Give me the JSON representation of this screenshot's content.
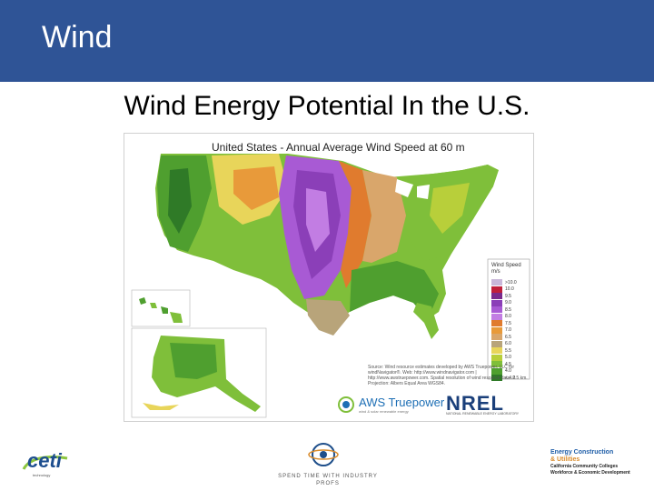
{
  "header": {
    "title": "Wind",
    "color": "#2f5496"
  },
  "slide": {
    "heading": "Wind Energy Potential In the U.S."
  },
  "map": {
    "title": "United States - Annual Average Wind Speed at 60 m",
    "legend": {
      "title": "Wind Speed m/s",
      "levels": [
        {
          "label": ">10.0",
          "color": "#c9b7d9"
        },
        {
          "label": "10.0",
          "color": "#c01f3a"
        },
        {
          "label": "9.5",
          "color": "#7a2a8c"
        },
        {
          "label": "9.0",
          "color": "#8b3fb8"
        },
        {
          "label": "8.5",
          "color": "#a85ad4"
        },
        {
          "label": "8.0",
          "color": "#c27de3"
        },
        {
          "label": "7.5",
          "color": "#e07b2e"
        },
        {
          "label": "7.0",
          "color": "#e89a3a"
        },
        {
          "label": "6.5",
          "color": "#d9a66b"
        },
        {
          "label": "6.0",
          "color": "#b8a47a"
        },
        {
          "label": "5.5",
          "color": "#e8d55a"
        },
        {
          "label": "5.0",
          "color": "#b8cf3a"
        },
        {
          "label": "4.5",
          "color": "#7fbf3a"
        },
        {
          "label": "4.0",
          "color": "#4f9f2f"
        },
        {
          "label": "< 4.0",
          "color": "#2f7a27"
        }
      ]
    },
    "source_note": "Source: Wind resource estimates developed by AWS Truepower, LLC for windNavigator®. Web: http://www.windnavigator.com | http://www.awstruepower.com. Spatial resolution of wind resource data: 2.5 km. Projection: Albers Equal Area WGS84.",
    "logos": {
      "aws": "AWS Truepower",
      "aws_tagline": "wind & solar renewable energy",
      "nrel": "NREL",
      "nrel_tagline": "NATIONAL RENEWABLE ENERGY LABORATORY"
    }
  },
  "footer": {
    "left_logo": {
      "name": "ceti",
      "tagline": "technology"
    },
    "center_logo": {
      "text": "SPEND TIME WITH INDUSTRY PROFS"
    },
    "right_logo": {
      "line1": "Energy Construction",
      "line2": "& Utilities",
      "line3": "California Community Colleges",
      "line4": "Workforce & Economic Development"
    }
  }
}
